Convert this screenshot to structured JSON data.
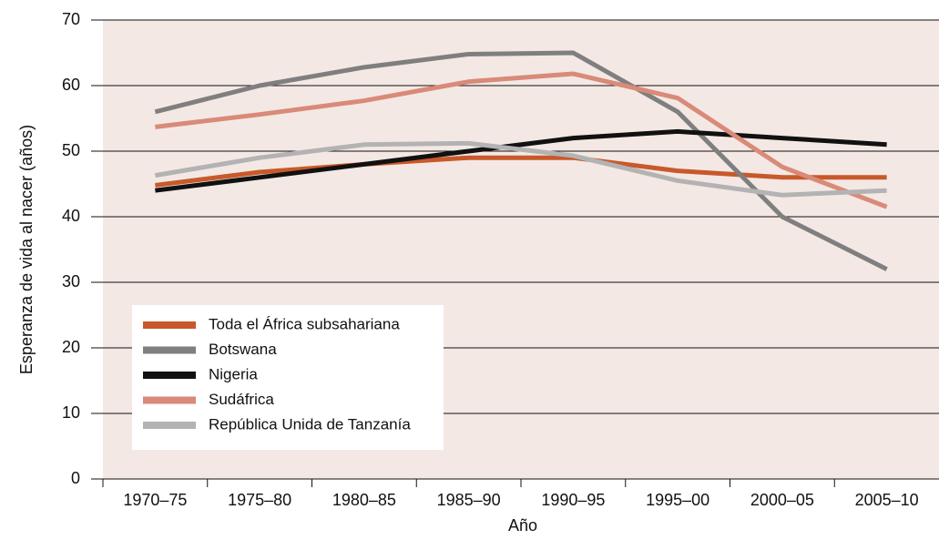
{
  "chart_data": {
    "type": "line",
    "x_label": "Año",
    "y_label": "Esperanza de vida al nacer (años)",
    "categories": [
      "1970–75",
      "1975–80",
      "1980–85",
      "1985–90",
      "1990–95",
      "1995–00",
      "2000–05",
      "2005–10"
    ],
    "series": [
      {
        "name": "Toda el África subsahariana",
        "color": "#c8592a",
        "values": [
          44.8,
          46.8,
          48,
          49,
          49,
          47,
          46,
          46
        ]
      },
      {
        "name": "Botswana",
        "color": "#7f7f7f",
        "values": [
          56,
          60,
          62.8,
          64.8,
          65,
          56,
          40,
          32
        ]
      },
      {
        "name": "Nigeria",
        "color": "#111111",
        "values": [
          44,
          46,
          48,
          50,
          52,
          53,
          52,
          51
        ]
      },
      {
        "name": "Sudáfrica",
        "color": "#d98a78",
        "values": [
          53.7,
          55.6,
          57.7,
          60.6,
          61.8,
          58.1,
          47.6,
          41.5
        ]
      },
      {
        "name": "República Unida de Tanzanía",
        "color": "#b3b3b3",
        "values": [
          46.3,
          49,
          51,
          51.2,
          49.3,
          45.5,
          43.3,
          44
        ]
      }
    ],
    "ylim": [
      0,
      70
    ],
    "yticks": [
      0,
      10,
      20,
      30,
      40,
      50,
      60,
      70
    ],
    "grid": true,
    "legend_position": "lower left"
  }
}
